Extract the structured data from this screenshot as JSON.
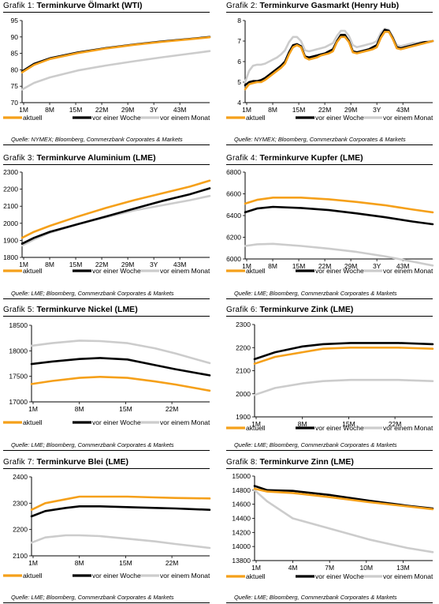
{
  "legend_labels": [
    "aktuell",
    "vor einer Woche",
    "vor einem Monat"
  ],
  "colors": {
    "aktuell": "#f5a01a",
    "vor einer Woche": "#000000",
    "vor einem Monat": "#cccccc"
  },
  "charts": [
    {
      "prefix": "Grafik 1:",
      "title": "Terminkurve Ölmarkt (WTI)",
      "source": "Quelle: NYMEX; Bloomberg, Commerzbank Corporates & Markets"
    },
    {
      "prefix": "Grafik 2:",
      "title": "Terminkurve Gasmarkt (Henry Hub)",
      "source": "Quelle: NYMEX; Bloomberg, Commerzbank Corporates & Markets"
    },
    {
      "prefix": "Grafik 3:",
      "title": "Terminkurve Aluminium (LME)",
      "source": "Quelle: LME; Bloomberg, Commerzbank Corporates & Markets"
    },
    {
      "prefix": "Grafik 4:",
      "title": "Terminkurve Kupfer (LME)",
      "source": "Quelle: LME; Bloomberg, Commerzbank Corporates & Markets"
    },
    {
      "prefix": "Grafik 5:",
      "title": "Terminkurve Nickel (LME)",
      "source": "Quelle: LME; Bloomberg, Commerzbank Corporates & Markets"
    },
    {
      "prefix": "Grafik 6:",
      "title": "Terminkurve Zink (LME)",
      "source": "Quelle: LME; Bloomberg, Commerzbank Corporates & Markets"
    },
    {
      "prefix": "Grafik 7:",
      "title": "Terminkurve Blei (LME)",
      "source": "Quelle: LME; Bloomberg, Commerzbank Corporates & Markets"
    },
    {
      "prefix": "Grafik 8:",
      "title": "Terminkurve Zinn (LME)",
      "source": "Quelle: LME; Bloomberg, Commerzbank Corporates & Markets"
    }
  ],
  "chart_data": [
    {
      "type": "line",
      "ylim": [
        70,
        95
      ],
      "yticks": [
        70,
        75,
        80,
        85,
        90,
        95
      ],
      "x_labels": [
        "1M",
        "8M",
        "15M",
        "22M",
        "29M",
        "3Y",
        "43M"
      ],
      "x": [
        1,
        4,
        8,
        15,
        22,
        29,
        36,
        43,
        48
      ],
      "series": [
        {
          "name": "aktuell",
          "values": [
            79.2,
            81.5,
            83.3,
            85.1,
            86.5,
            87.6,
            88.5,
            89.3,
            89.9
          ]
        },
        {
          "name": "vor einer Woche",
          "values": [
            79.5,
            81.8,
            83.5,
            85.3,
            86.6,
            87.7,
            88.6,
            89.4,
            90.0
          ]
        },
        {
          "name": "vor einem Monat",
          "values": [
            74.0,
            76.0,
            77.7,
            79.8,
            81.3,
            82.6,
            83.8,
            84.9,
            85.7
          ]
        }
      ]
    },
    {
      "type": "line",
      "ylim": [
        4,
        8
      ],
      "yticks": [
        4,
        5,
        6,
        7,
        8
      ],
      "x_labels": [
        "1M",
        "8M",
        "15M",
        "22M",
        "29M",
        "3Y",
        "43M"
      ],
      "x": [
        1,
        2,
        3,
        4,
        5,
        6,
        7,
        8,
        9,
        10,
        11,
        12,
        13,
        14,
        15,
        16,
        17,
        18,
        19,
        20,
        21,
        22,
        23,
        24,
        25,
        26,
        27,
        28,
        29,
        30,
        31,
        32,
        33,
        34,
        35,
        36,
        37,
        38,
        39,
        40,
        41,
        42,
        43,
        44,
        45,
        46,
        47,
        48
      ],
      "series": [
        {
          "name": "aktuell",
          "values": [
            4.65,
            4.9,
            4.95,
            5.0,
            5.0,
            5.1,
            5.25,
            5.4,
            5.55,
            5.7,
            5.9,
            6.35,
            6.7,
            6.8,
            6.7,
            6.2,
            6.1,
            6.15,
            6.2,
            6.3,
            6.35,
            6.4,
            6.5,
            6.95,
            7.2,
            7.2,
            6.95,
            6.45,
            6.4,
            6.45,
            6.5,
            6.55,
            6.6,
            6.7,
            7.15,
            7.45,
            7.45,
            7.1,
            6.65,
            6.6,
            6.65,
            6.7,
            6.75,
            6.8,
            6.85,
            6.9,
            6.95,
            7.0
          ]
        },
        {
          "name": "vor einer Woche",
          "values": [
            4.85,
            5.0,
            5.05,
            5.05,
            5.1,
            5.2,
            5.35,
            5.5,
            5.65,
            5.8,
            6.0,
            6.45,
            6.8,
            6.85,
            6.75,
            6.25,
            6.2,
            6.25,
            6.3,
            6.35,
            6.4,
            6.5,
            6.6,
            7.0,
            7.3,
            7.3,
            7.0,
            6.5,
            6.45,
            6.5,
            6.55,
            6.6,
            6.7,
            6.8,
            7.25,
            7.55,
            7.5,
            7.15,
            6.7,
            6.65,
            6.7,
            6.75,
            6.8,
            6.85,
            6.9,
            6.95,
            6.95,
            7.0
          ]
        },
        {
          "name": "vor einem Monat",
          "values": [
            5.0,
            5.55,
            5.8,
            5.85,
            5.85,
            5.9,
            6.0,
            6.1,
            6.2,
            6.35,
            6.55,
            6.95,
            7.2,
            7.2,
            7.0,
            6.55,
            6.5,
            6.55,
            6.6,
            6.65,
            6.7,
            6.8,
            6.9,
            7.25,
            7.5,
            7.5,
            7.25,
            6.8,
            6.7,
            6.75,
            6.8,
            6.85,
            6.9,
            7.0,
            7.4,
            7.6,
            7.55,
            7.2,
            6.8,
            6.75,
            6.8,
            6.85,
            6.9,
            6.9,
            6.95,
            6.95,
            7.0,
            7.0
          ]
        }
      ]
    },
    {
      "type": "line",
      "ylim": [
        1800,
        2300
      ],
      "yticks": [
        1800,
        1900,
        2000,
        2100,
        2200,
        2300
      ],
      "x_labels": [
        "1M",
        "8M",
        "15M",
        "22M",
        "29M",
        "3Y",
        "43M"
      ],
      "x": [
        1,
        4,
        8,
        15,
        22,
        29,
        36,
        43,
        48
      ],
      "series": [
        {
          "name": "aktuell",
          "values": [
            1915,
            1950,
            1985,
            2040,
            2090,
            2135,
            2175,
            2215,
            2250
          ]
        },
        {
          "name": "vor einer Woche",
          "values": [
            1880,
            1915,
            1950,
            1995,
            2040,
            2085,
            2130,
            2170,
            2205
          ]
        },
        {
          "name": "vor einem Monat",
          "values": [
            1870,
            1905,
            1945,
            1995,
            2035,
            2075,
            2105,
            2135,
            2160
          ]
        }
      ]
    },
    {
      "type": "line",
      "ylim": [
        6000,
        6800
      ],
      "yticks": [
        6000,
        6200,
        6400,
        6600,
        6800
      ],
      "x_labels": [
        "1M",
        "8M",
        "15M",
        "22M",
        "29M",
        "3Y",
        "43M"
      ],
      "x": [
        1,
        4,
        8,
        15,
        22,
        29,
        36,
        43,
        48
      ],
      "series": [
        {
          "name": "aktuell",
          "values": [
            6510,
            6545,
            6565,
            6565,
            6550,
            6525,
            6495,
            6455,
            6430
          ]
        },
        {
          "name": "vor einer Woche",
          "values": [
            6430,
            6465,
            6480,
            6470,
            6450,
            6420,
            6385,
            6345,
            6320
          ]
        },
        {
          "name": "vor einem Monat",
          "values": [
            6120,
            6135,
            6140,
            6120,
            6095,
            6065,
            6025,
            5975,
            5940
          ]
        }
      ]
    },
    {
      "type": "line",
      "ylim": [
        17000,
        18500
      ],
      "yticks": [
        17000,
        17500,
        18000,
        18500
      ],
      "x_labels": [
        "1M",
        "8M",
        "15M",
        "22M"
      ],
      "x": [
        1,
        4,
        8,
        11,
        15,
        19,
        22,
        27
      ],
      "series": [
        {
          "name": "aktuell",
          "values": [
            17350,
            17410,
            17470,
            17490,
            17470,
            17400,
            17340,
            17220
          ]
        },
        {
          "name": "vor einer Woche",
          "values": [
            17740,
            17790,
            17840,
            17860,
            17830,
            17720,
            17640,
            17520
          ]
        },
        {
          "name": "vor einem Monat",
          "values": [
            18100,
            18150,
            18200,
            18190,
            18150,
            18050,
            17950,
            17760
          ]
        }
      ]
    },
    {
      "type": "line",
      "ylim": [
        1900,
        2300
      ],
      "yticks": [
        1900,
        2000,
        2100,
        2200,
        2300
      ],
      "x_labels": [
        "1M",
        "8M",
        "15M",
        "22M"
      ],
      "x": [
        1,
        4,
        8,
        11,
        15,
        19,
        22,
        27
      ],
      "series": [
        {
          "name": "aktuell",
          "values": [
            2130,
            2160,
            2180,
            2195,
            2200,
            2200,
            2200,
            2195
          ]
        },
        {
          "name": "vor einer Woche",
          "values": [
            2150,
            2180,
            2205,
            2215,
            2220,
            2220,
            2220,
            2215
          ]
        },
        {
          "name": "vor einem Monat",
          "values": [
            1995,
            2025,
            2045,
            2055,
            2060,
            2060,
            2060,
            2055
          ]
        }
      ]
    },
    {
      "type": "line",
      "ylim": [
        2100,
        2400
      ],
      "yticks": [
        2100,
        2200,
        2300,
        2400
      ],
      "x_labels": [
        "1M",
        "8M",
        "15M",
        "22M"
      ],
      "x": [
        1,
        3,
        6,
        8,
        11,
        15,
        19,
        22,
        27
      ],
      "series": [
        {
          "name": "aktuell",
          "values": [
            2275,
            2300,
            2315,
            2325,
            2325,
            2325,
            2322,
            2320,
            2318
          ]
        },
        {
          "name": "vor einer Woche",
          "values": [
            2250,
            2270,
            2282,
            2288,
            2288,
            2285,
            2282,
            2280,
            2275
          ]
        },
        {
          "name": "vor einem Monat",
          "values": [
            2150,
            2170,
            2178,
            2178,
            2175,
            2165,
            2155,
            2145,
            2130
          ]
        }
      ]
    },
    {
      "type": "line",
      "ylim": [
        13800,
        15000
      ],
      "yticks": [
        13800,
        14000,
        14200,
        14400,
        14600,
        14800,
        15000
      ],
      "x_labels": [
        "1M",
        "4M",
        "7M",
        "10M",
        "13M"
      ],
      "x": [
        1,
        2,
        4,
        7,
        10,
        13,
        15
      ],
      "series": [
        {
          "name": "aktuell",
          "values": [
            14820,
            14780,
            14760,
            14700,
            14630,
            14570,
            14530
          ]
        },
        {
          "name": "vor einer Woche",
          "values": [
            14860,
            14800,
            14790,
            14730,
            14650,
            14580,
            14540
          ]
        },
        {
          "name": "vor einem Monat",
          "values": [
            14800,
            14640,
            14400,
            14250,
            14100,
            13980,
            13920
          ]
        }
      ]
    }
  ]
}
